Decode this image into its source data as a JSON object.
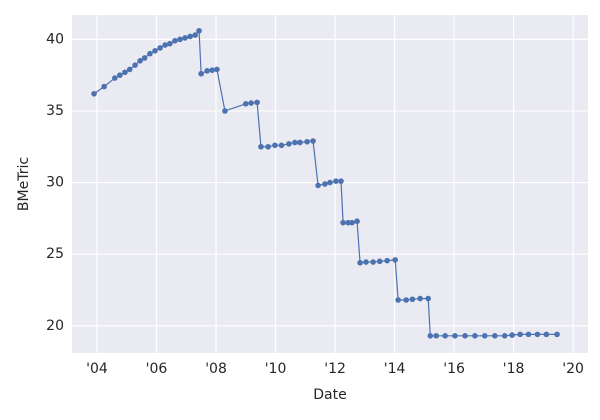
{
  "chart_data": {
    "type": "line",
    "x_label": "Date",
    "y_label": "BMeTric",
    "xlim": [
      2003.16,
      2020.5
    ],
    "ylim": [
      18.1,
      41.7
    ],
    "xticks": [
      {
        "value": 2004,
        "label": "'04"
      },
      {
        "value": 2006,
        "label": "'06"
      },
      {
        "value": 2008,
        "label": "'08"
      },
      {
        "value": 2010,
        "label": "'10"
      },
      {
        "value": 2012,
        "label": "'12"
      },
      {
        "value": 2014,
        "label": "'14"
      },
      {
        "value": 2016,
        "label": "'16"
      },
      {
        "value": 2018,
        "label": "'18"
      },
      {
        "value": 2020,
        "label": "'20"
      }
    ],
    "yticks": [
      20,
      25,
      30,
      35,
      40
    ],
    "grid": true,
    "series": [
      {
        "name": "BMeTric",
        "color": "#4c72b0",
        "x": [
          2003.9,
          2004.24,
          2004.6,
          2004.77,
          2004.94,
          2005.1,
          2005.28,
          2005.45,
          2005.6,
          2005.78,
          2005.95,
          2006.12,
          2006.29,
          2006.45,
          2006.62,
          2006.79,
          2006.96,
          2007.13,
          2007.3,
          2007.43,
          2007.5,
          2007.7,
          2007.87,
          2008.03,
          2008.3,
          2009.0,
          2009.18,
          2009.38,
          2009.51,
          2009.75,
          2009.98,
          2010.2,
          2010.45,
          2010.65,
          2010.82,
          2011.06,
          2011.26,
          2011.43,
          2011.66,
          2011.83,
          2012.03,
          2012.2,
          2012.27,
          2012.44,
          2012.57,
          2012.74,
          2012.84,
          2013.04,
          2013.28,
          2013.5,
          2013.75,
          2014.02,
          2014.12,
          2014.39,
          2014.6,
          2014.86,
          2015.13,
          2015.2,
          2015.4,
          2015.7,
          2016.03,
          2016.37,
          2016.7,
          2017.03,
          2017.37,
          2017.7,
          2017.95,
          2018.22,
          2018.5,
          2018.8,
          2019.1,
          2019.46
        ],
        "values": [
          36.2,
          36.7,
          37.3,
          37.5,
          37.7,
          37.9,
          38.2,
          38.5,
          38.7,
          39.0,
          39.2,
          39.4,
          39.6,
          39.7,
          39.9,
          40.0,
          40.1,
          40.2,
          40.3,
          40.6,
          37.6,
          37.8,
          37.85,
          37.9,
          35.0,
          35.5,
          35.55,
          35.6,
          32.5,
          32.5,
          32.6,
          32.6,
          32.7,
          32.8,
          32.8,
          32.85,
          32.9,
          29.8,
          29.9,
          30.0,
          30.1,
          30.1,
          27.2,
          27.2,
          27.2,
          27.3,
          24.4,
          24.45,
          24.45,
          24.5,
          24.55,
          24.6,
          21.8,
          21.8,
          21.85,
          21.9,
          21.9,
          19.3,
          19.3,
          19.3,
          19.3,
          19.3,
          19.3,
          19.3,
          19.3,
          19.3,
          19.35,
          19.4,
          19.4,
          19.4,
          19.4,
          19.4
        ]
      }
    ]
  }
}
